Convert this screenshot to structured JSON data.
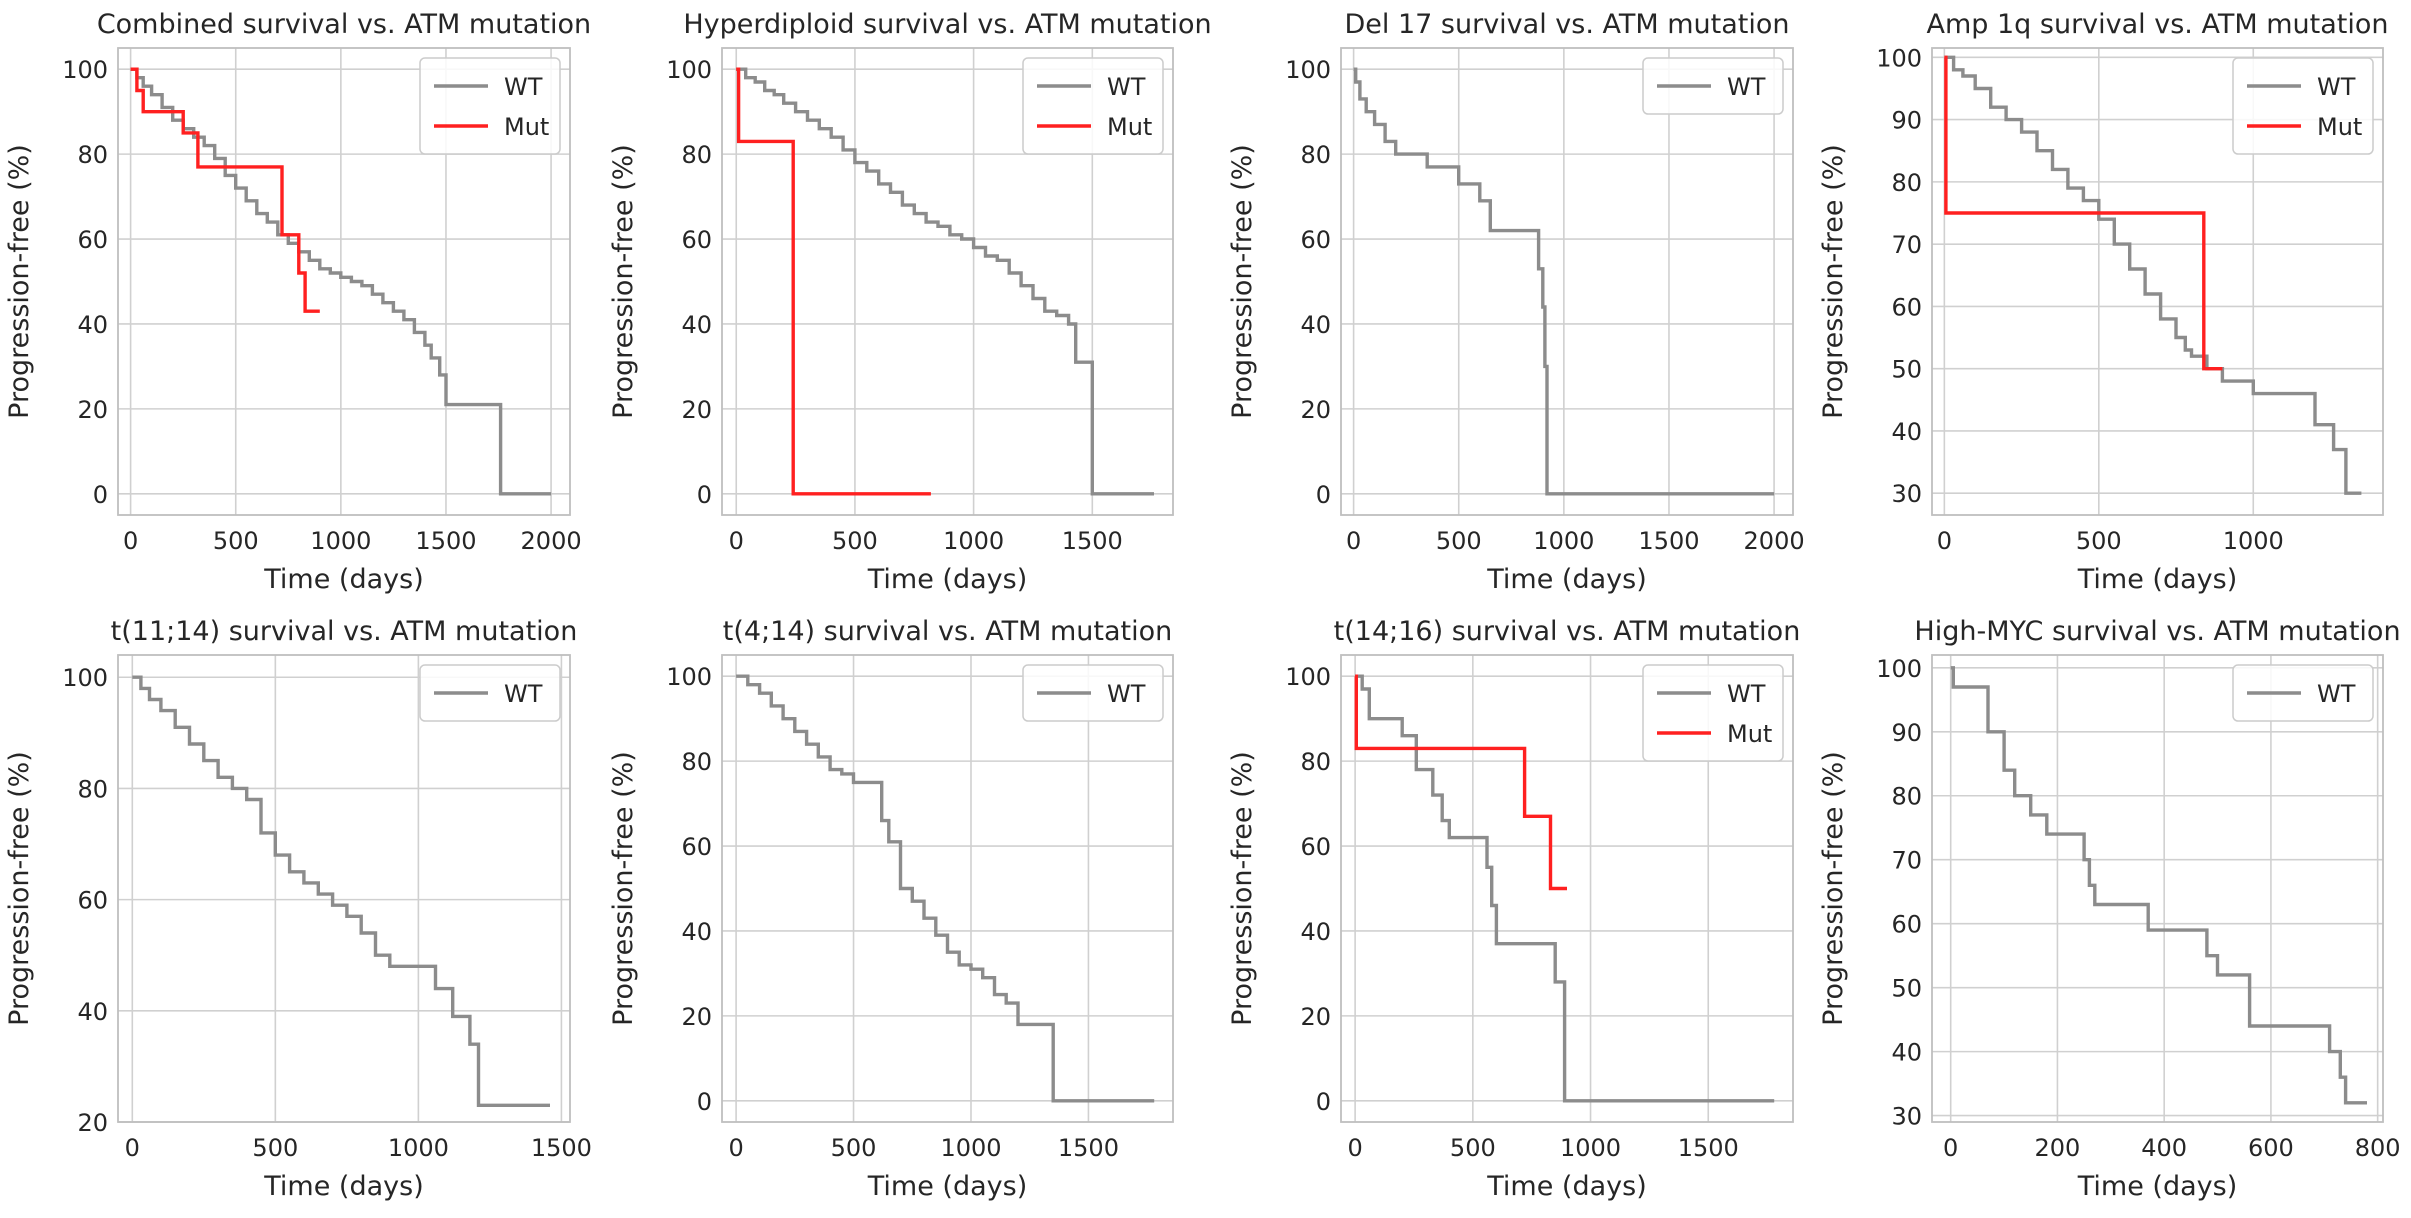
{
  "figure": {
    "ylabel": "Progression-free (%)",
    "xlabel": "Time (days)",
    "colors": {
      "WT": "#8c8c8c",
      "Mut": "#ff2020",
      "grid": "#d0d0d0",
      "frame": "#bfbfbf",
      "text": "#262626"
    }
  },
  "chart_data": [
    {
      "type": "line",
      "step": true,
      "title": "Combined survival vs. ATM mutation",
      "xlabel": "Time (days)",
      "ylabel": "Progression-free (%)",
      "xlim": [
        -60,
        2090
      ],
      "ylim": [
        -5,
        105
      ],
      "xticks": [
        0,
        500,
        1000,
        1500,
        2000
      ],
      "yticks": [
        0,
        20,
        40,
        60,
        80,
        100
      ],
      "legend": "top-right",
      "series": [
        {
          "name": "WT",
          "color": "#8c8c8c",
          "x": [
            0,
            30,
            60,
            100,
            150,
            200,
            250,
            300,
            350,
            400,
            450,
            500,
            550,
            600,
            650,
            700,
            750,
            800,
            850,
            900,
            950,
            1000,
            1050,
            1100,
            1150,
            1200,
            1250,
            1300,
            1350,
            1400,
            1430,
            1470,
            1500,
            1550,
            1600,
            1650,
            1700,
            1750,
            1760,
            1800,
            1850,
            1900,
            2000
          ],
          "y": [
            100,
            98,
            96,
            94,
            91,
            88,
            86,
            84,
            82,
            79,
            75,
            72,
            69,
            66,
            64,
            61,
            59,
            57,
            55,
            53,
            52,
            51,
            50,
            49,
            47,
            45,
            43,
            41,
            38,
            35,
            32,
            28,
            21,
            21,
            21,
            21,
            21,
            21,
            0,
            0,
            0,
            0,
            0
          ]
        },
        {
          "name": "Mut",
          "color": "#ff2020",
          "x": [
            0,
            30,
            60,
            250,
            320,
            720,
            800,
            830,
            900
          ],
          "y": [
            100,
            95,
            90,
            85,
            77,
            61,
            52,
            43,
            43
          ]
        }
      ]
    },
    {
      "type": "line",
      "step": true,
      "title": "Hyperdiploid survival vs. ATM mutation",
      "xlabel": "Time (days)",
      "ylabel": "Progression-free (%)",
      "xlim": [
        -60,
        1840
      ],
      "ylim": [
        -5,
        105
      ],
      "xticks": [
        0,
        500,
        1000,
        1500
      ],
      "yticks": [
        0,
        20,
        40,
        60,
        80,
        100
      ],
      "legend": "top-right",
      "series": [
        {
          "name": "WT",
          "color": "#8c8c8c",
          "x": [
            0,
            40,
            80,
            120,
            160,
            200,
            250,
            300,
            350,
            400,
            450,
            500,
            550,
            600,
            650,
            700,
            750,
            800,
            850,
            900,
            950,
            1000,
            1050,
            1100,
            1150,
            1200,
            1250,
            1300,
            1350,
            1400,
            1430,
            1500,
            1600,
            1760
          ],
          "y": [
            100,
            98,
            97,
            95,
            94,
            92,
            90,
            88,
            86,
            84,
            81,
            78,
            76,
            73,
            71,
            68,
            66,
            64,
            63,
            61,
            60,
            58,
            56,
            55,
            52,
            49,
            46,
            43,
            42,
            40,
            31,
            0,
            0,
            0
          ]
        },
        {
          "name": "Mut",
          "color": "#ff2020",
          "x": [
            0,
            10,
            240,
            820
          ],
          "y": [
            100,
            83,
            0,
            0
          ]
        }
      ]
    },
    {
      "type": "line",
      "step": true,
      "title": "Del 17 survival vs. ATM mutation",
      "xlabel": "Time (days)",
      "ylabel": "Progression-free (%)",
      "xlim": [
        -60,
        2090
      ],
      "ylim": [
        -5,
        105
      ],
      "xticks": [
        0,
        500,
        1000,
        1500,
        2000
      ],
      "yticks": [
        0,
        20,
        40,
        60,
        80,
        100
      ],
      "legend": "top-right",
      "series": [
        {
          "name": "WT",
          "color": "#8c8c8c",
          "x": [
            0,
            10,
            30,
            60,
            100,
            150,
            200,
            350,
            500,
            600,
            650,
            880,
            900,
            910,
            920,
            2000
          ],
          "y": [
            100,
            97,
            93,
            90,
            87,
            83,
            80,
            77,
            73,
            69,
            62,
            53,
            44,
            30,
            0,
            0
          ]
        }
      ]
    },
    {
      "type": "line",
      "step": true,
      "title": "Amp 1q survival vs. ATM mutation",
      "xlabel": "Time (days)",
      "ylabel": "Progression-free (%)",
      "xlim": [
        -40,
        1420
      ],
      "ylim": [
        26.5,
        101.5
      ],
      "xticks": [
        0,
        500,
        1000
      ],
      "yticks": [
        30,
        40,
        50,
        60,
        70,
        80,
        90,
        100
      ],
      "legend": "top-right",
      "series": [
        {
          "name": "WT",
          "color": "#8c8c8c",
          "x": [
            0,
            30,
            60,
            100,
            150,
            200,
            250,
            300,
            350,
            400,
            450,
            500,
            550,
            600,
            650,
            700,
            750,
            780,
            800,
            850,
            900,
            1000,
            1100,
            1200,
            1260,
            1300,
            1350
          ],
          "y": [
            100,
            98,
            97,
            95,
            92,
            90,
            88,
            85,
            82,
            79,
            77,
            74,
            70,
            66,
            62,
            58,
            55,
            53,
            52,
            50,
            48,
            46,
            46,
            41,
            37,
            30,
            30
          ]
        },
        {
          "name": "Mut",
          "color": "#ff2020",
          "x": [
            0,
            5,
            840,
            900
          ],
          "y": [
            100,
            75,
            50,
            50
          ]
        }
      ]
    },
    {
      "type": "line",
      "step": true,
      "title": "t(11;14) survival vs. ATM mutation",
      "xlabel": "Time (days)",
      "ylabel": "Progression-free (%)",
      "xlim": [
        -50,
        1530
      ],
      "ylim": [
        20,
        104
      ],
      "xticks": [
        0,
        500,
        1000,
        1500
      ],
      "yticks": [
        20,
        40,
        60,
        80,
        100
      ],
      "legend": "top-right",
      "series": [
        {
          "name": "WT",
          "color": "#8c8c8c",
          "x": [
            0,
            30,
            60,
            100,
            150,
            200,
            250,
            300,
            350,
            400,
            450,
            500,
            550,
            600,
            650,
            700,
            750,
            800,
            850,
            900,
            1000,
            1060,
            1120,
            1180,
            1210,
            1300,
            1460
          ],
          "y": [
            100,
            98,
            96,
            94,
            91,
            88,
            85,
            82,
            80,
            78,
            72,
            68,
            65,
            63,
            61,
            59,
            57,
            54,
            50,
            48,
            48,
            44,
            39,
            34,
            23,
            23,
            23
          ]
        }
      ]
    },
    {
      "type": "line",
      "step": true,
      "title": "t(4;14) survival vs. ATM mutation",
      "xlabel": "Time (days)",
      "ylabel": "Progression-free (%)",
      "xlim": [
        -60,
        1860
      ],
      "ylim": [
        -5,
        105
      ],
      "xticks": [
        0,
        500,
        1000,
        1500
      ],
      "yticks": [
        0,
        20,
        40,
        60,
        80,
        100
      ],
      "legend": "top-right",
      "series": [
        {
          "name": "WT",
          "color": "#8c8c8c",
          "x": [
            0,
            50,
            100,
            150,
            200,
            250,
            300,
            350,
            400,
            450,
            500,
            600,
            620,
            650,
            700,
            750,
            800,
            850,
            900,
            950,
            1000,
            1050,
            1100,
            1150,
            1200,
            1350,
            1500,
            1780
          ],
          "y": [
            100,
            98,
            96,
            93,
            90,
            87,
            84,
            81,
            78,
            77,
            75,
            75,
            66,
            61,
            50,
            47,
            43,
            39,
            35,
            32,
            31,
            29,
            25,
            23,
            18,
            0,
            0,
            0
          ]
        }
      ]
    },
    {
      "type": "line",
      "step": true,
      "title": "t(14;16) survival vs. ATM mutation",
      "xlabel": "Time (days)",
      "ylabel": "Progression-free (%)",
      "xlim": [
        -60,
        1860
      ],
      "ylim": [
        -5,
        105
      ],
      "xticks": [
        0,
        500,
        1000,
        1500
      ],
      "yticks": [
        0,
        20,
        40,
        60,
        80,
        100
      ],
      "legend": "top-right",
      "series": [
        {
          "name": "WT",
          "color": "#8c8c8c",
          "x": [
            0,
            30,
            60,
            200,
            260,
            330,
            370,
            400,
            560,
            580,
            600,
            850,
            890,
            920,
            1780
          ],
          "y": [
            100,
            97,
            90,
            86,
            78,
            72,
            66,
            62,
            55,
            46,
            37,
            28,
            0,
            0,
            0
          ]
        },
        {
          "name": "Mut",
          "color": "#ff2020",
          "x": [
            0,
            5,
            720,
            830,
            900
          ],
          "y": [
            100,
            83,
            67,
            50,
            50
          ]
        }
      ]
    },
    {
      "type": "line",
      "step": true,
      "title": "High-MYC survival vs. ATM mutation",
      "xlabel": "Time (days)",
      "ylabel": "Progression-free (%)",
      "xlim": [
        -35,
        810
      ],
      "ylim": [
        29,
        102
      ],
      "xticks": [
        0,
        200,
        400,
        600,
        800
      ],
      "yticks": [
        30,
        40,
        50,
        60,
        70,
        80,
        90,
        100
      ],
      "legend": "top-right",
      "series": [
        {
          "name": "WT",
          "color": "#8c8c8c",
          "x": [
            0,
            5,
            70,
            100,
            120,
            150,
            180,
            250,
            260,
            270,
            370,
            480,
            500,
            560,
            710,
            730,
            740,
            780
          ],
          "y": [
            100,
            97,
            90,
            84,
            80,
            77,
            74,
            70,
            66,
            63,
            59,
            55,
            52,
            44,
            40,
            36,
            32,
            32
          ]
        }
      ]
    }
  ]
}
